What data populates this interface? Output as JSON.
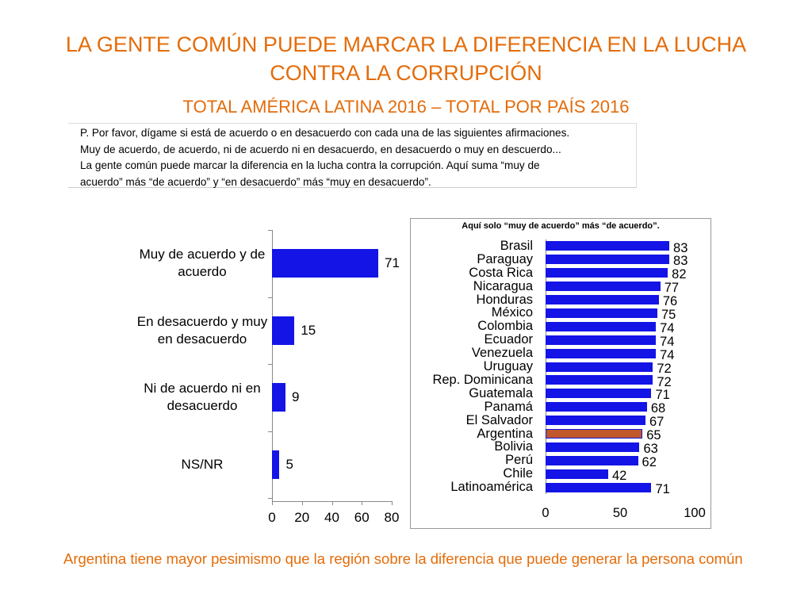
{
  "title": "LA GENTE COMÚN PUEDE MARCAR LA DIFERENCIA EN LA LUCHA CONTRA LA CORRUPCIÓN",
  "subtitle": "TOTAL AMÉRICA LATINA 2016 – TOTAL POR PAÍS 2016",
  "question": "P. Por favor, dígame si está de acuerdo o en desacuerdo con cada una de las siguientes afirmaciones. Muy de acuerdo, de acuerdo, ni de acuerdo ni en desacuerdo, en desacuerdo o muy en descuerdo... La gente común puede marcar la diferencia en la lucha contra la corrupción. Aquí suma “muy de acuerdo” más “de acuerdo” y “en desacuerdo” más “muy en desacuerdo”.",
  "conclusion": "Argentina tiene mayor pesimismo que la región sobre la diferencia que puede generar la persona común",
  "chart_data": [
    {
      "type": "bar",
      "orientation": "horizontal",
      "categories": [
        "Muy de acuerdo y de acuerdo",
        "En desacuerdo y muy en desacuerdo",
        "Ni de acuerdo ni en desacuerdo",
        "NS/NR"
      ],
      "values": [
        71,
        15,
        9,
        5
      ],
      "color": "#1414e6",
      "xlim": [
        0,
        80
      ],
      "xticks": [
        0,
        20,
        40,
        60,
        80
      ]
    },
    {
      "type": "bar",
      "orientation": "horizontal",
      "title": "Aquí solo “muy de acuerdo” más “de acuerdo”.",
      "categories": [
        "Brasil",
        "Paraguay",
        "Costa Rica",
        "Nicaragua",
        "Honduras",
        "México",
        "Colombia",
        "Ecuador",
        "Venezuela",
        "Uruguay",
        "Rep. Dominicana",
        "Guatemala",
        "Panamá",
        "El Salvador",
        "Argentina",
        "Bolivia",
        "Perú",
        "Chile",
        "Latinoamérica"
      ],
      "values": [
        83,
        83,
        82,
        77,
        76,
        75,
        74,
        74,
        74,
        72,
        72,
        71,
        68,
        67,
        65,
        63,
        62,
        42,
        71
      ],
      "colors": [
        "#1414e6",
        "#1414e6",
        "#1414e6",
        "#1414e6",
        "#1414e6",
        "#1414e6",
        "#1414e6",
        "#1414e6",
        "#1414e6",
        "#1414e6",
        "#1414e6",
        "#1414e6",
        "#1414e6",
        "#1414e6",
        "#c0582b",
        "#1414e6",
        "#1414e6",
        "#1414e6",
        "#1414e6"
      ],
      "xlim": [
        0,
        100
      ],
      "xticks": [
        0,
        50,
        100
      ]
    }
  ]
}
